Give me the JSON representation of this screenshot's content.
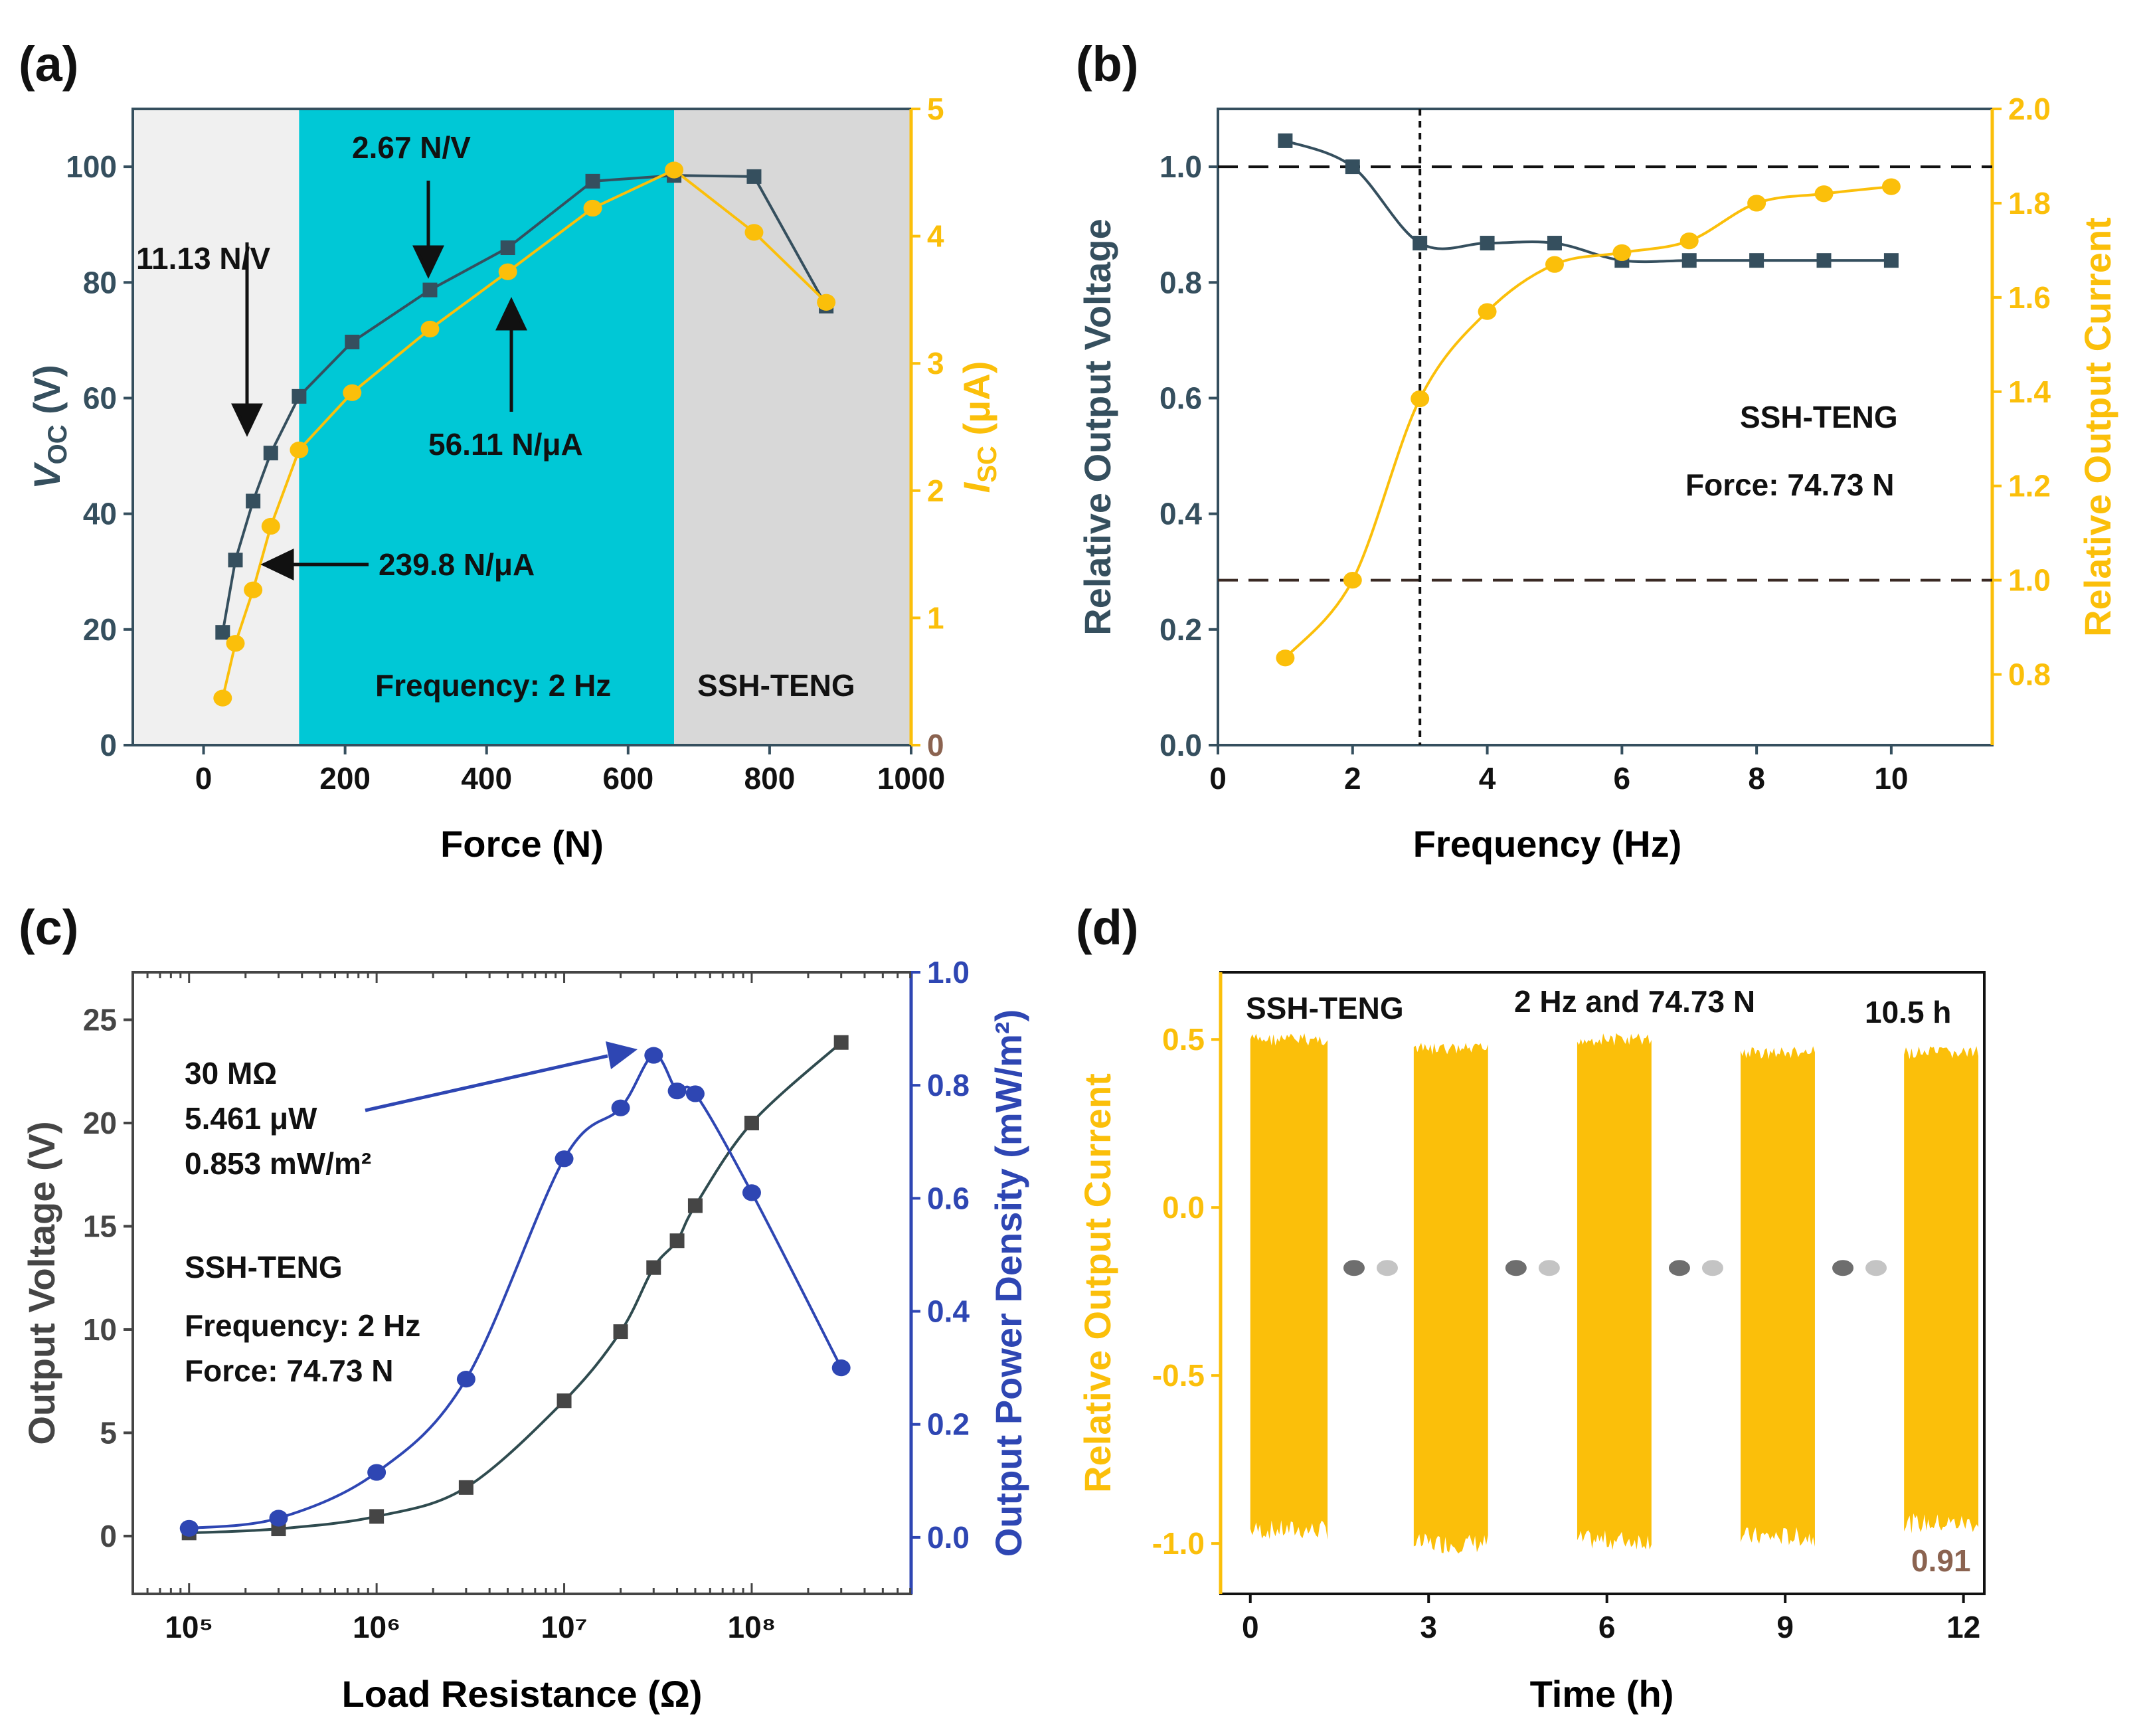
{
  "colors": {
    "voltage": "#354f5e",
    "current": "#fbbf0a",
    "power": "#2e46b3",
    "gray_series": "#454545",
    "bg_low": "#f0f0f0",
    "bg_mid": "#00c8d6",
    "bg_high": "#d8d8d8",
    "current_zero_label": "#8b6350",
    "marker_text": "#8b6350"
  },
  "chart_data": [
    {
      "panel": "(a)",
      "type": "scatter",
      "xlabel": "Force (N)",
      "ylabel_left": "VOC (V)",
      "ylabel_right": "ISC (μA)",
      "xlim": [
        -100,
        1000
      ],
      "ylim_left": [
        0,
        110
      ],
      "ylim_right": [
        0,
        5
      ],
      "xticks": [
        "0",
        "200",
        "400",
        "600",
        "800",
        "1000"
      ],
      "yticks_left": [
        "0",
        "20",
        "40",
        "60",
        "80",
        "100"
      ],
      "yticks_right": [
        "0",
        "1",
        "2",
        "3",
        "4",
        "5"
      ],
      "regions": [
        {
          "from": -100,
          "to": 135,
          "name": "low"
        },
        {
          "from": 135,
          "to": 665,
          "name": "mid"
        },
        {
          "from": 665,
          "to": 1000,
          "name": "high"
        }
      ],
      "series": [
        {
          "name": "VOC",
          "axis": "left",
          "marker": "square",
          "x": [
            27,
            45,
            70,
            95,
            135,
            210,
            320,
            430,
            550,
            665,
            778,
            880
          ],
          "values": [
            19.5,
            32,
            42.2,
            50.5,
            60.3,
            69.7,
            78.7,
            86,
            97.5,
            98.5,
            98.3,
            75.9
          ]
        },
        {
          "name": "ISC",
          "axis": "right",
          "marker": "circle",
          "x": [
            27,
            45,
            70,
            95,
            135,
            210,
            320,
            430,
            550,
            665,
            778,
            880
          ],
          "values": [
            0.37,
            0.8,
            1.22,
            1.72,
            2.32,
            2.77,
            3.27,
            3.72,
            4.22,
            4.52,
            4.03,
            3.48
          ]
        }
      ],
      "annotations": {
        "a1": "11.13 N/V",
        "a2": "2.67 N/V",
        "a3": "56.11 N/μA",
        "a4": "239.8 N/μA",
        "frequency": "Frequency: 2 Hz",
        "device": "SSH-TENG"
      }
    },
    {
      "panel": "(b)",
      "type": "line",
      "xlabel": "Frequency (Hz)",
      "ylabel_left": "Relative Output Voltage",
      "ylabel_right": "Relative Output Current",
      "xlim": [
        0,
        11.5
      ],
      "ylim_left": [
        0,
        1.1
      ],
      "ylim_right": [
        0.65,
        2.0
      ],
      "xticks": [
        "0",
        "2",
        "4",
        "6",
        "8",
        "10"
      ],
      "yticks_left": [
        "0.0",
        "0.2",
        "0.4",
        "0.6",
        "0.8",
        "1.0"
      ],
      "yticks_right": [
        "0.8",
        "1.0",
        "1.2",
        "1.4",
        "1.6",
        "1.8",
        "2.0"
      ],
      "ref_lines": {
        "voltage_y": 1.0,
        "current_y": 1.0,
        "vertical_x": 3
      },
      "series": [
        {
          "name": "Relative Output Voltage",
          "axis": "left",
          "marker": "square",
          "x": [
            1,
            2,
            3,
            4,
            5,
            6,
            7,
            8,
            9,
            10
          ],
          "values": [
            1.045,
            1.0,
            0.868,
            0.868,
            0.868,
            0.838,
            0.838,
            0.838,
            0.838,
            0.838
          ]
        },
        {
          "name": "Relative Output Current",
          "axis": "right",
          "marker": "circle",
          "x": [
            1,
            2,
            3,
            4,
            5,
            6,
            7,
            8,
            9,
            10
          ],
          "values": [
            0.835,
            1.0,
            1.385,
            1.57,
            1.67,
            1.695,
            1.72,
            1.8,
            1.82,
            1.835
          ]
        }
      ],
      "annotations": {
        "device": "SSH-TENG",
        "force": "Force: 74.73 N"
      }
    },
    {
      "panel": "(c)",
      "type": "line",
      "xscale": "log",
      "xlabel": "Load Resistance  (Ω)",
      "ylabel_left": "Output Voltage (V)",
      "ylabel_right": "Output Power Density (mW/m²)",
      "xlim_log10": [
        4.7,
        8.85
      ],
      "ylim_left": [
        -2.8,
        27.3
      ],
      "ylim_right": [
        -0.1,
        1.0
      ],
      "xticks": [
        "10⁵",
        "10⁶",
        "10⁷",
        "10⁸"
      ],
      "yticks_left": [
        "0",
        "5",
        "10",
        "15",
        "20",
        "25"
      ],
      "yticks_right": [
        "0.0",
        "0.2",
        "0.4",
        "0.6",
        "0.8",
        "1.0"
      ],
      "series": [
        {
          "name": "Output Voltage",
          "axis": "left",
          "marker": "square",
          "x": [
            100000,
            300000,
            1000000,
            3000000,
            10000000,
            20000000,
            30000000,
            40000000,
            50000000,
            100000000,
            300000000
          ],
          "values": [
            0.15,
            0.35,
            0.95,
            2.35,
            6.55,
            9.9,
            13.0,
            14.3,
            16.0,
            20.0,
            23.9
          ]
        },
        {
          "name": "Output Power Density",
          "axis": "right",
          "marker": "circle",
          "x": [
            100000,
            300000,
            1000000,
            3000000,
            10000000,
            20000000,
            30000000,
            40000000,
            50000000,
            100000000,
            300000000
          ],
          "values": [
            0.016,
            0.034,
            0.115,
            0.28,
            0.67,
            0.76,
            0.853,
            0.79,
            0.785,
            0.61,
            0.3
          ]
        }
      ],
      "annotations": {
        "peak_r": "30 MΩ",
        "peak_p": "5.461 μW",
        "peak_d": "0.853 mW/m²",
        "device": "SSH-TENG",
        "frequency": "Frequency: 2 Hz",
        "force": "Force: 74.73 N"
      }
    },
    {
      "panel": "(d)",
      "type": "area",
      "xlabel": "Time (h)",
      "ylabel_left": "Relative Output Current",
      "xlim": [
        -0.5,
        12.35
      ],
      "ylim_left": [
        -1.15,
        0.7
      ],
      "xticks": [
        "0",
        "3",
        "6",
        "9",
        "12"
      ],
      "yticks_left": [
        "-1.0",
        "-0.5",
        "0.0",
        "0.5"
      ],
      "segments": [
        {
          "t_start": 0,
          "t_end": 1.3,
          "max": 0.52,
          "min": -0.99
        },
        {
          "t_start": 2.75,
          "t_end": 4.0,
          "max": 0.49,
          "min": -1.03
        },
        {
          "t_start": 5.5,
          "t_end": 6.75,
          "max": 0.52,
          "min": -1.02
        },
        {
          "t_start": 8.25,
          "t_end": 9.5,
          "max": 0.48,
          "min": -1.01
        },
        {
          "t_start": 11.0,
          "t_end": 12.25,
          "max": 0.48,
          "min": -0.97
        }
      ],
      "annotations": {
        "device": "SSH-TENG",
        "condition": "2 Hz and 74.73 N",
        "duration": "10.5 h",
        "end_value": "0.91"
      }
    }
  ]
}
